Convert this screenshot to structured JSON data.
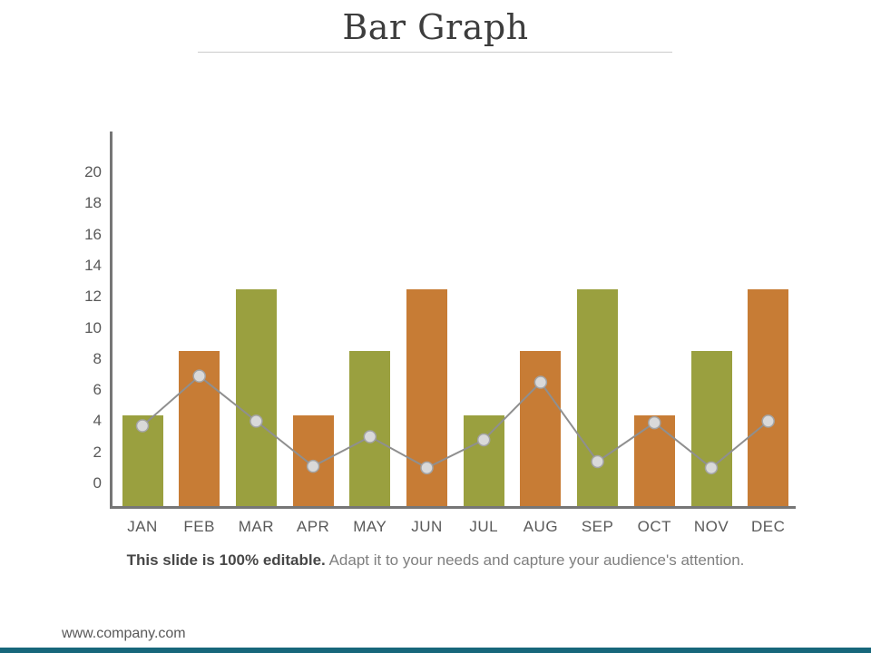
{
  "page": {
    "title": "Bar Graph",
    "footer_bold": "This slide is 100% editable.",
    "footer_regular": " Adapt it to your needs and capture your audience's attention.",
    "website": "www.company.com",
    "accent_bar_color": "#17677b"
  },
  "chart_data": {
    "type": "bar",
    "title": "Bar Graph",
    "xlabel": "",
    "ylabel": "",
    "categories": [
      "JAN",
      "FEB",
      "MAR",
      "APR",
      "MAY",
      "JUN",
      "JUL",
      "AUG",
      "SEP",
      "OCT",
      "NOV",
      "DEC"
    ],
    "series": [
      {
        "name": "monthly-bars",
        "type": "bar",
        "values": [
          4.4,
          8.5,
          12.5,
          4.4,
          8.5,
          12.5,
          4.4,
          8.5,
          12.5,
          4.4,
          8.5,
          12.5
        ],
        "color_pattern": [
          "#9aa03f",
          "#c77c35"
        ]
      },
      {
        "name": "trend-line",
        "type": "line",
        "values": [
          3.7,
          6.9,
          4.0,
          1.1,
          3.0,
          1.0,
          2.8,
          6.5,
          1.4,
          3.9,
          1.0,
          4.0
        ],
        "line_color": "#8f8f8f",
        "marker_fill": "#d9d9d9",
        "marker_stroke": "#a3a3a3"
      }
    ],
    "y_ticks": [
      0,
      2,
      4,
      6,
      8,
      10,
      12,
      14,
      16,
      18,
      20
    ],
    "ylim": [
      0,
      20
    ],
    "grid": false,
    "legend": "none",
    "axis_color": "#767676",
    "tick_label_color": "#595959"
  }
}
